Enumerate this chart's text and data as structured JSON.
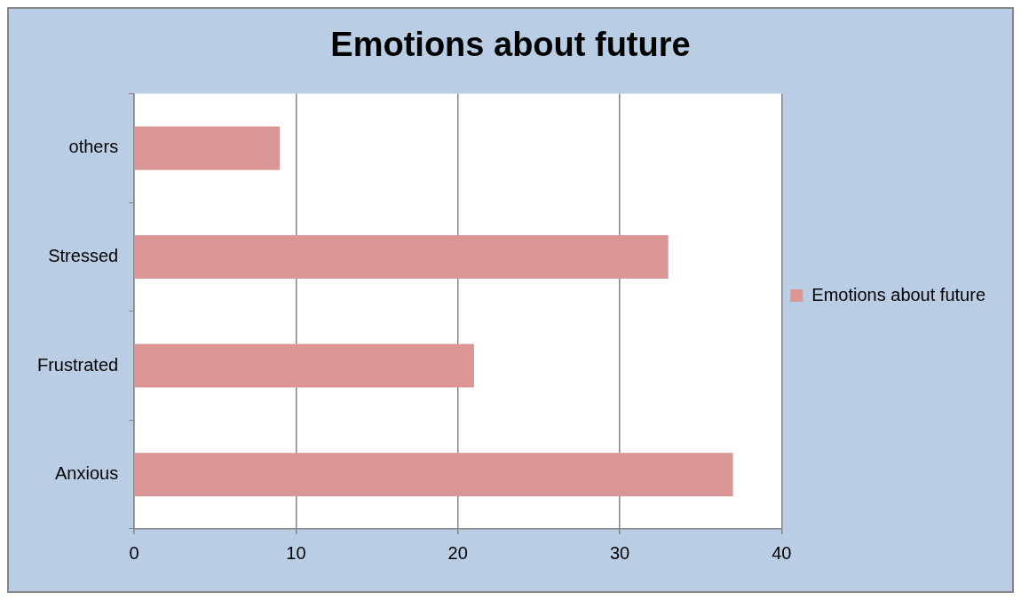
{
  "chart_data": {
    "type": "bar",
    "orientation": "horizontal",
    "title": "Emotions about future",
    "categories": [
      "others",
      "Stressed",
      "Frustrated",
      "Anxious"
    ],
    "series": [
      {
        "name": "Emotions about future",
        "color": "#d99694",
        "values": [
          9,
          33,
          21,
          37
        ]
      }
    ],
    "xlim": [
      0,
      40
    ],
    "xticks": [
      0,
      10,
      20,
      30,
      40
    ],
    "grid": "x",
    "legend": "right"
  }
}
